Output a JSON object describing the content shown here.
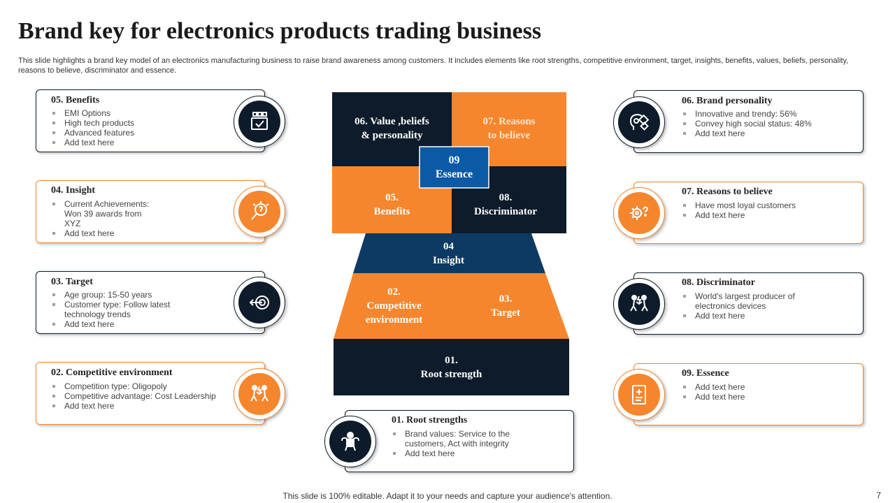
{
  "title": "Brand key for electronics products trading business",
  "subtitle": "This slide highlights a brand key model of an electronics manufacturing business to raise brand awareness among customers. It includes elements like root strengths, competitive environment, target, insights, benefits, values, beliefs, personality, reasons to believe, discriminator and essence.",
  "colors": {
    "navy": "#0d1b2a",
    "orange": "#f5862e",
    "blue": "#0b5aa6",
    "mid_navy": "#0d3a63"
  },
  "diagram": {
    "value_beliefs": {
      "line1": "06. Value ,beliefs",
      "line2": "& personality"
    },
    "reasons": {
      "line1": "07. Reasons",
      "line2": "to believe"
    },
    "essence": {
      "line1": "09",
      "line2": "Essence"
    },
    "benefits": {
      "line1": "05.",
      "line2": "Benefits"
    },
    "discriminator": {
      "line1": "08.",
      "line2": "Discriminator"
    },
    "insight": {
      "line1": "04",
      "line2": "Insight"
    },
    "competitive": {
      "line1": "02.",
      "line2": "Competitive",
      "line3": "environment"
    },
    "target": {
      "line1": "03.",
      "line2": "Target"
    },
    "root": {
      "line1": "01.",
      "line2": "Root strength"
    }
  },
  "cards": {
    "benefits": {
      "title": "05. Benefits",
      "items": [
        "EMI Options",
        "High tech products",
        "Advanced features",
        "Add text here"
      ],
      "icon": "checklist-icon"
    },
    "insight": {
      "title": "04. Insight",
      "items": [
        "Current Achievements: Won 39 awards from XYZ",
        "Add text here"
      ],
      "icon": "lightbulb-search-icon"
    },
    "target": {
      "title": "03. Target",
      "items": [
        "Age group: 15-50 years",
        "Customer type: Follow latest technology trends",
        "Add text here"
      ],
      "icon": "target-arrow-icon"
    },
    "competitive": {
      "title": "02. Competitive environment",
      "items": [
        "Competition type: Oligopoly",
        "Competitive advantage: Cost Leadership",
        "Add text here"
      ],
      "icon": "competitors-icon"
    },
    "root": {
      "title": "01. Root strengths",
      "items": [
        "Brand values: Service to the customers, Act with integrity",
        "Add text here"
      ],
      "icon": "strength-icon"
    },
    "personality": {
      "title": "06. Brand personality",
      "items": [
        "Innovative and trendy: 56%",
        "Convey high social status: 48%",
        "Add text here"
      ],
      "icon": "head-gears-icon"
    },
    "reasons": {
      "title": "07. Reasons to believe",
      "items": [
        "Have most loyal customers",
        "Add text here"
      ],
      "icon": "gear-question-icon"
    },
    "discriminator": {
      "title": "08. Discriminator",
      "items": [
        "World's largest producer of electronics devices",
        "Add text here"
      ],
      "icon": "competitors-icon"
    },
    "essence": {
      "title": "09. Essence",
      "items": [
        "Add text here",
        "Add text here"
      ],
      "icon": "medical-document-icon"
    }
  },
  "footer": "This slide is 100% editable. Adapt it to your needs and capture your audience's attention.",
  "page_number": "7"
}
